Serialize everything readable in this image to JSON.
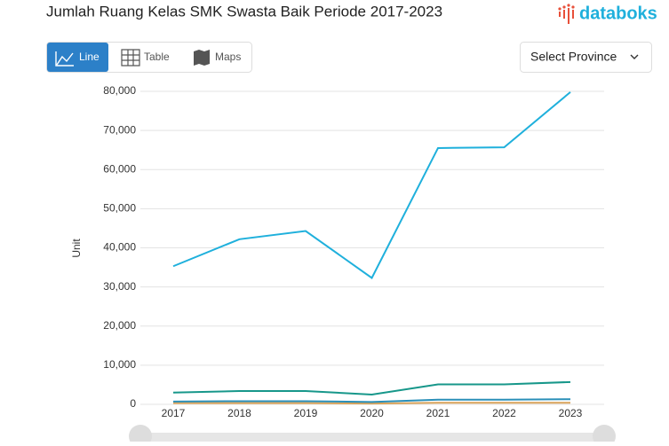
{
  "header": {
    "logo": "databoks"
  },
  "controls": {
    "views": [
      "Line",
      "Table",
      "Maps"
    ],
    "select": "Select Province"
  },
  "chart_data": {
    "type": "line",
    "title": "Jumlah Ruang Kelas SMK Swasta Baik Periode 2017-2023",
    "y_label": "Unit",
    "categories": [
      "2017",
      "2018",
      "2019",
      "2020",
      "2021",
      "2022",
      "2023"
    ],
    "series": [
      {
        "color": "#1fb0dc",
        "values": [
          35300,
          42200,
          44300,
          32300,
          65500,
          65700,
          79800
        ]
      },
      {
        "color": "#17978a",
        "values": [
          3000,
          3400,
          3400,
          2500,
          5100,
          5100,
          5700
        ]
      },
      {
        "color": "#2a8fb8",
        "values": [
          700,
          800,
          800,
          600,
          1200,
          1200,
          1300
        ]
      },
      {
        "color": "#d9a35a",
        "values": [
          300,
          300,
          300,
          200,
          400,
          400,
          400
        ]
      }
    ],
    "ylim": [
      0,
      80000
    ],
    "yticks": [
      0,
      {
        "value": 10000,
        "label": "10,000"
      },
      {
        "value": 20000,
        "label": "20,000"
      },
      {
        "value": 30000,
        "label": "30,000"
      },
      {
        "value": 40000,
        "label": "40,000"
      },
      {
        "value": 50000,
        "label": "50,000"
      },
      {
        "value": 60000,
        "label": "60,000"
      },
      {
        "value": 70000,
        "label": "70,000"
      },
      {
        "value": 80000,
        "label": "80,000"
      }
    ],
    "grid": true
  }
}
